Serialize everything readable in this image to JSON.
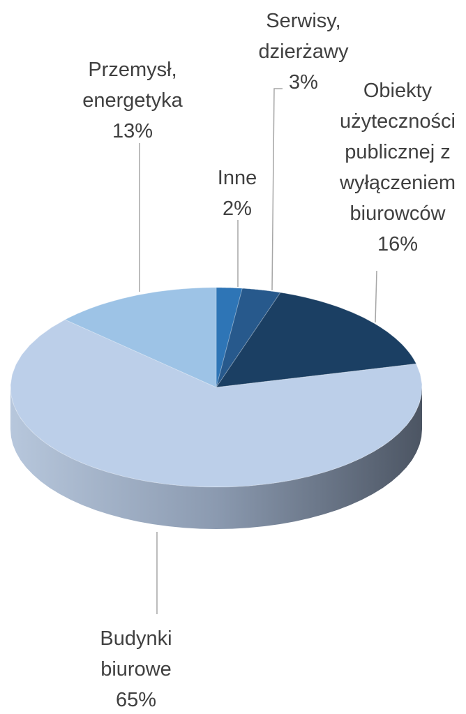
{
  "chart_data": {
    "type": "pie3d",
    "categories": [
      "Inne",
      "Serwisy, dzierżawy",
      "Obiekty użyteczności publicznej z wyłączeniem biurowców",
      "Budynki biurowe",
      "Przemysł, energetyka"
    ],
    "values": [
      2,
      3,
      16,
      65,
      13
    ],
    "value_labels": [
      "2%",
      "3%",
      "16%",
      "65%",
      "13%"
    ],
    "colors": [
      "#2e75b6",
      "#27598c",
      "#1b3f63",
      "#bccfe9",
      "#9dc3e6"
    ]
  }
}
